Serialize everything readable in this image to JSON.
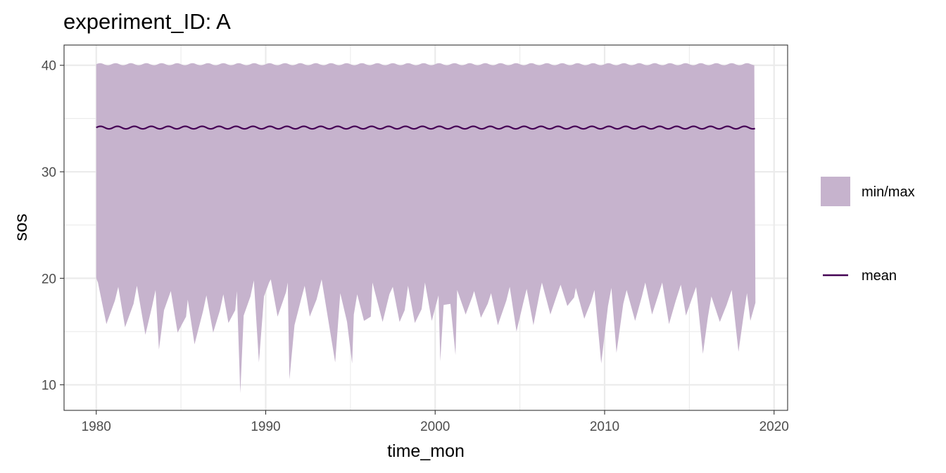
{
  "chart_data": {
    "type": "area",
    "title": "experiment_ID: A",
    "xlabel": "time_mon",
    "ylabel": "sos",
    "x_ticks": [
      1980,
      1990,
      2000,
      2010,
      2020
    ],
    "y_ticks": [
      10,
      20,
      30,
      40
    ],
    "xlim": [
      1978.1,
      2020.8
    ],
    "ylim": [
      7.6,
      41.9
    ],
    "grid": true,
    "legend_position": "right",
    "colors": {
      "ribbon": "#c6b3cd",
      "mean": "#440154",
      "grid": "#ebebeb",
      "panel_border": "#333333"
    },
    "series": [
      {
        "name": "min/max",
        "kind": "ribbon",
        "x_start": 1980.0,
        "x_end": 2018.9,
        "upper_mean": 40.1,
        "upper_amplitude": 0.1,
        "minimum_keypoints": [
          [
            1980.0,
            20.0
          ],
          [
            1980.1,
            19.6
          ],
          [
            1980.6,
            15.7
          ],
          [
            1981.1,
            17.9
          ],
          [
            1981.3,
            19.2
          ],
          [
            1981.7,
            15.4
          ],
          [
            1982.2,
            17.6
          ],
          [
            1982.4,
            19.3
          ],
          [
            1982.9,
            14.7
          ],
          [
            1983.3,
            17.4
          ],
          [
            1983.5,
            18.9
          ],
          [
            1983.7,
            13.3
          ],
          [
            1984.0,
            17.0
          ],
          [
            1984.4,
            18.8
          ],
          [
            1984.8,
            14.9
          ],
          [
            1985.3,
            16.4
          ],
          [
            1985.4,
            18.0
          ],
          [
            1985.8,
            13.8
          ],
          [
            1986.3,
            16.9
          ],
          [
            1986.5,
            18.4
          ],
          [
            1986.9,
            14.9
          ],
          [
            1987.3,
            17.0
          ],
          [
            1987.5,
            18.5
          ],
          [
            1987.8,
            15.8
          ],
          [
            1988.2,
            17.0
          ],
          [
            1988.3,
            18.8
          ],
          [
            1988.5,
            9.2
          ],
          [
            1988.7,
            16.5
          ],
          [
            1989.1,
            18.3
          ],
          [
            1989.3,
            19.8
          ],
          [
            1989.6,
            12.1
          ],
          [
            1989.9,
            18.3
          ],
          [
            1990.2,
            19.6
          ],
          [
            1990.3,
            19.9
          ],
          [
            1990.7,
            16.4
          ],
          [
            1991.2,
            18.7
          ],
          [
            1991.3,
            19.6
          ],
          [
            1991.4,
            10.5
          ],
          [
            1991.7,
            15.6
          ],
          [
            1992.1,
            18.1
          ],
          [
            1992.3,
            19.3
          ],
          [
            1992.6,
            16.4
          ],
          [
            1993.0,
            18.0
          ],
          [
            1993.3,
            19.9
          ],
          [
            1993.7,
            16.0
          ],
          [
            1994.1,
            12.1
          ],
          [
            1994.4,
            18.6
          ],
          [
            1994.8,
            15.9
          ],
          [
            1995.1,
            12.0
          ],
          [
            1995.2,
            16.6
          ],
          [
            1995.4,
            18.5
          ],
          [
            1995.8,
            16.0
          ],
          [
            1996.2,
            16.4
          ],
          [
            1996.3,
            19.6
          ],
          [
            1996.9,
            15.9
          ],
          [
            1997.3,
            18.5
          ],
          [
            1997.5,
            19.2
          ],
          [
            1997.9,
            15.9
          ],
          [
            1998.2,
            17.0
          ],
          [
            1998.4,
            19.3
          ],
          [
            1998.8,
            15.8
          ],
          [
            1999.2,
            17.1
          ],
          [
            1999.4,
            19.6
          ],
          [
            1999.8,
            16.0
          ],
          [
            2000.2,
            18.4
          ],
          [
            2000.3,
            12.2
          ],
          [
            2000.5,
            17.5
          ],
          [
            2000.9,
            17.6
          ],
          [
            2001.2,
            12.8
          ],
          [
            2001.3,
            18.9
          ],
          [
            2001.8,
            16.6
          ],
          [
            2002.2,
            18.3
          ],
          [
            2002.3,
            18.8
          ],
          [
            2002.7,
            16.3
          ],
          [
            2003.1,
            17.6
          ],
          [
            2003.3,
            18.6
          ],
          [
            2003.7,
            15.6
          ],
          [
            2004.2,
            17.9
          ],
          [
            2004.4,
            19.2
          ],
          [
            2004.8,
            15.0
          ],
          [
            2005.2,
            17.7
          ],
          [
            2005.4,
            19.0
          ],
          [
            2005.8,
            15.6
          ],
          [
            2006.2,
            18.9
          ],
          [
            2006.3,
            19.6
          ],
          [
            2006.8,
            16.6
          ],
          [
            2007.2,
            18.5
          ],
          [
            2007.4,
            19.4
          ],
          [
            2007.8,
            17.4
          ],
          [
            2008.2,
            18.2
          ],
          [
            2008.3,
            19.1
          ],
          [
            2008.8,
            16.2
          ],
          [
            2009.2,
            17.8
          ],
          [
            2009.4,
            18.9
          ],
          [
            2009.8,
            12.0
          ],
          [
            2010.2,
            17.4
          ],
          [
            2010.4,
            19.1
          ],
          [
            2010.7,
            13.0
          ],
          [
            2011.1,
            17.6
          ],
          [
            2011.3,
            18.9
          ],
          [
            2011.8,
            16.0
          ],
          [
            2012.2,
            18.3
          ],
          [
            2012.4,
            19.6
          ],
          [
            2012.8,
            16.6
          ],
          [
            2013.2,
            18.6
          ],
          [
            2013.4,
            19.6
          ],
          [
            2013.8,
            15.7
          ],
          [
            2014.2,
            17.9
          ],
          [
            2014.5,
            19.4
          ],
          [
            2014.8,
            16.5
          ],
          [
            2015.2,
            18.3
          ],
          [
            2015.4,
            19.2
          ],
          [
            2015.8,
            12.9
          ],
          [
            2016.1,
            16.4
          ],
          [
            2016.3,
            18.3
          ],
          [
            2016.8,
            15.9
          ],
          [
            2017.2,
            17.5
          ],
          [
            2017.5,
            18.9
          ],
          [
            2017.9,
            13.1
          ],
          [
            2018.2,
            16.5
          ],
          [
            2018.4,
            18.6
          ],
          [
            2018.6,
            16.0
          ],
          [
            2018.9,
            17.7
          ]
        ]
      },
      {
        "name": "mean",
        "kind": "line",
        "x_start": 1980.0,
        "x_end": 2018.9,
        "mean": 34.15,
        "amplitude": 0.12
      }
    ],
    "legend": [
      {
        "label": "min/max",
        "kind": "fill"
      },
      {
        "label": "mean",
        "kind": "line"
      }
    ]
  }
}
